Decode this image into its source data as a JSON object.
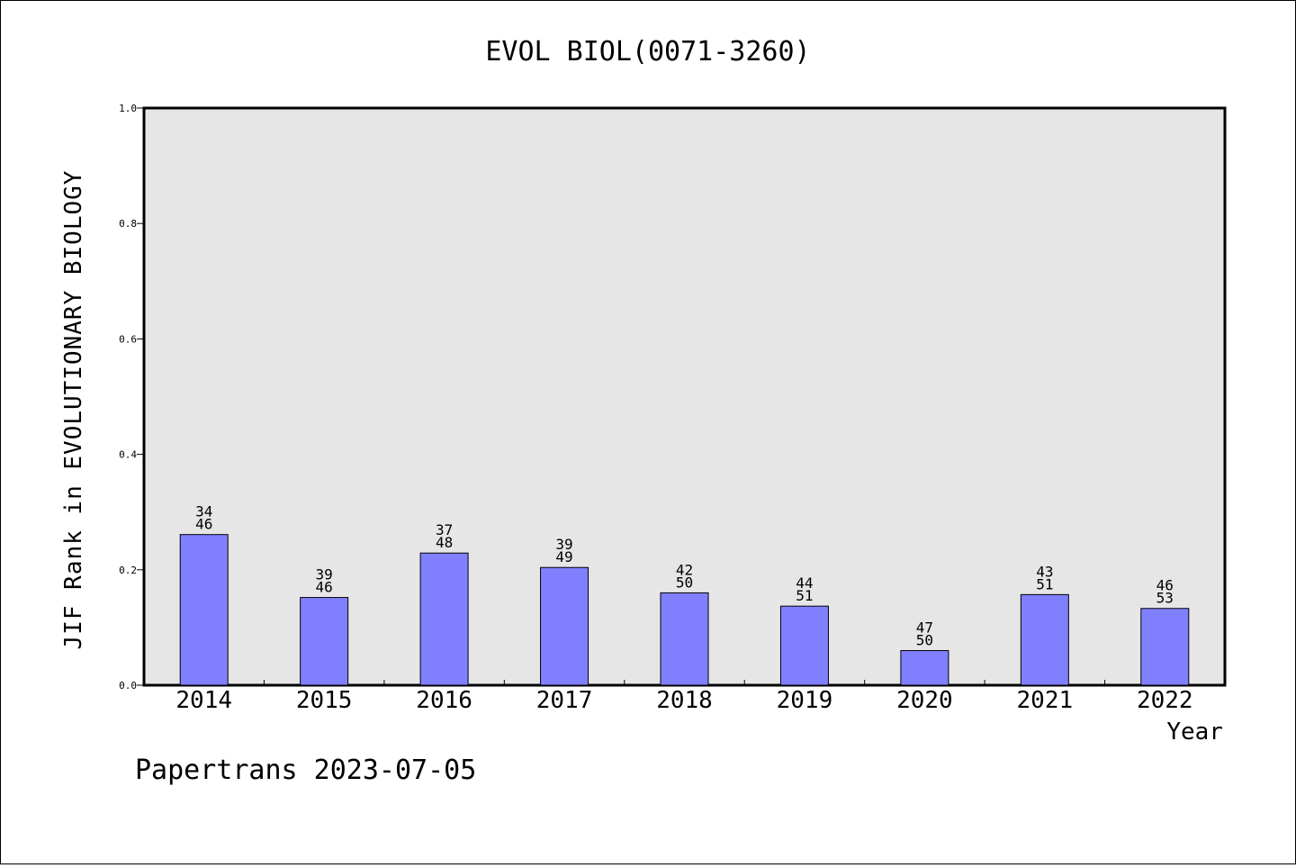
{
  "chart_data": {
    "type": "bar",
    "title": "EVOL BIOL(0071-3260)",
    "xlabel": "Year",
    "ylabel": "JIF Rank in EVOLUTIONARY BIOLOGY",
    "ylim": [
      0,
      1.0
    ],
    "yticks": [
      "0.0",
      "0.2",
      "0.4",
      "0.6",
      "0.8",
      "1.0"
    ],
    "grid": false,
    "categories": [
      "2014",
      "2015",
      "2016",
      "2017",
      "2018",
      "2019",
      "2020",
      "2021",
      "2022"
    ],
    "values": [
      0.261,
      0.152,
      0.229,
      0.204,
      0.16,
      0.137,
      0.06,
      0.157,
      0.133
    ],
    "rank": [
      "34",
      "39",
      "37",
      "39",
      "42",
      "44",
      "47",
      "43",
      "46"
    ],
    "total": [
      "46",
      "46",
      "48",
      "49",
      "50",
      "51",
      "50",
      "51",
      "53"
    ],
    "colors": {
      "bar": "#8080ff",
      "plot_bg": "#e6e6e6",
      "axis": "#000000"
    }
  },
  "footer": "Papertrans 2023-07-05"
}
